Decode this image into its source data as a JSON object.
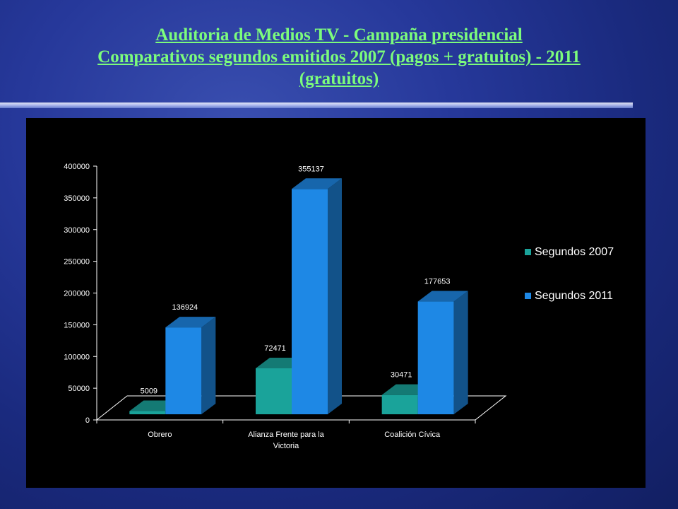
{
  "slide": {
    "title_line1": "Auditoria de Medios TV - Campaña presidencial",
    "title_line2": "Comparativos segundos emitidos 2007 (pagos + gratuitos) - 2011",
    "title_line3": "(gratuitos)",
    "title_color": "#7CFC7C"
  },
  "chart_data": {
    "type": "bar",
    "style": "3d-clustered-column",
    "categories": [
      [
        "Obrero"
      ],
      [
        "Alianza Frente para la",
        "Victoria"
      ],
      [
        "Coalición Cívica"
      ]
    ],
    "series": [
      {
        "name": "Segundos 2007",
        "values": [
          5009,
          72471,
          30471
        ],
        "color": "#1aa39a"
      },
      {
        "name": "Segundos 2011",
        "values": [
          136924,
          355137,
          177653
        ],
        "color": "#1e88e5"
      }
    ],
    "ylim": [
      0,
      400000
    ],
    "yticks": [
      0,
      50000,
      100000,
      150000,
      200000,
      250000,
      300000,
      350000,
      400000
    ],
    "data_labels": true,
    "legend_position": "right",
    "grid": false,
    "background": "#000000"
  }
}
